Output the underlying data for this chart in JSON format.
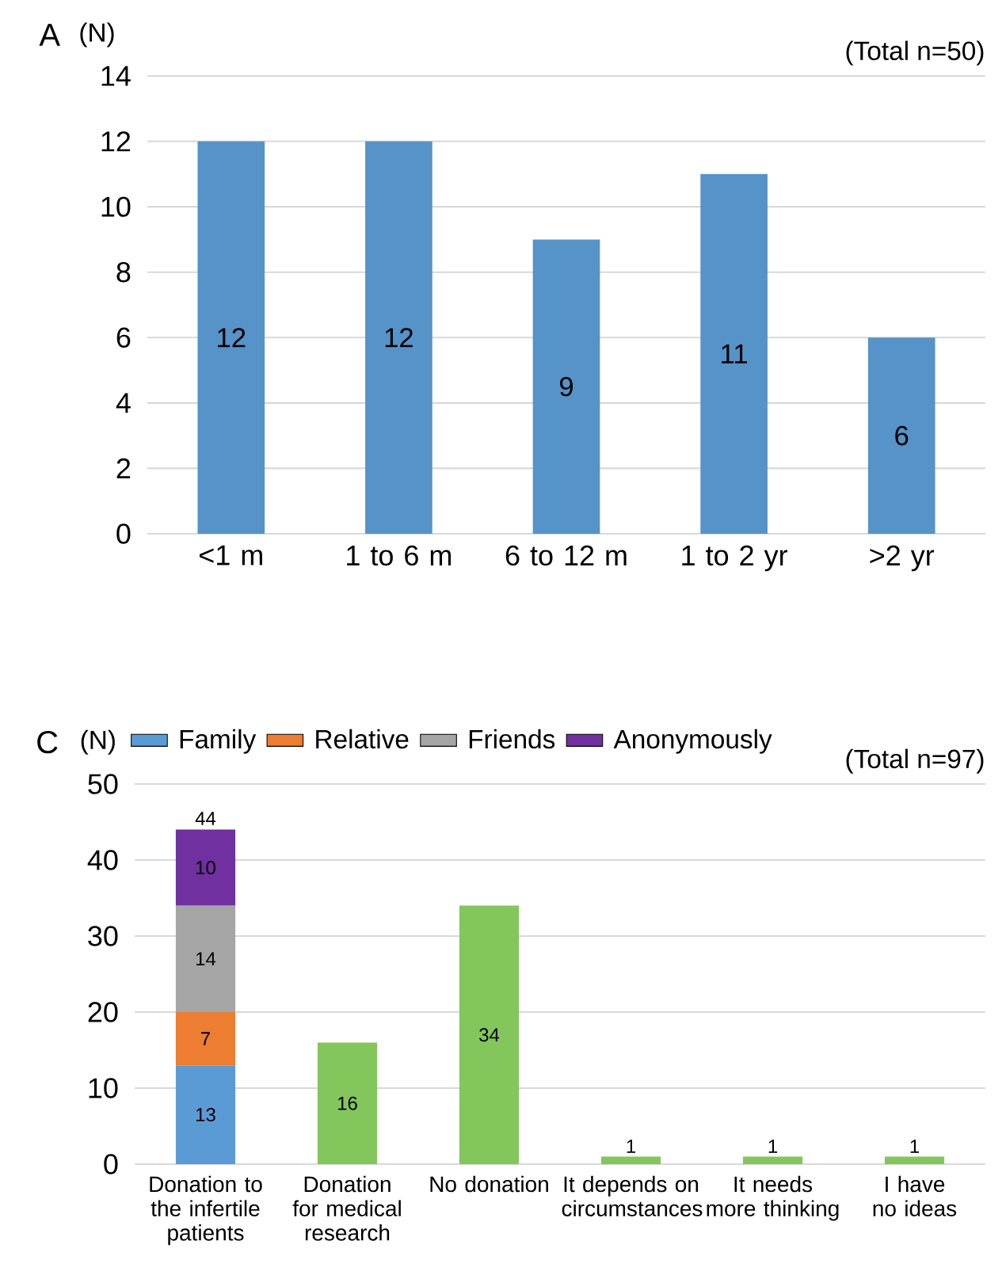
{
  "chart_data": [
    {
      "type": "bar",
      "title": "A",
      "ylabel": "(N)",
      "annotations": [
        "(Total n=50)"
      ],
      "categories": [
        "<1 m",
        "1 to 6 m",
        "6 to 12 m",
        "1 to 2 yr",
        ">2 yr"
      ],
      "values": [
        12,
        12,
        9,
        11,
        6
      ],
      "color": "#5593c8",
      "ylim": [
        0,
        14
      ],
      "yticks": [
        0,
        2,
        4,
        6,
        8,
        10,
        12,
        14
      ],
      "grid": "y",
      "data_labels": true
    },
    {
      "type": "bar",
      "title": "C",
      "ylabel": "(N)",
      "annotations": [
        "(Total n=97)"
      ],
      "categories": [
        "Donation to the infertile patients",
        "Donation for medical research",
        "No donation",
        "It depends on circumstances",
        "It needs more thinking",
        "I have no ideas"
      ],
      "stacked": true,
      "series": [
        {
          "name": "Family",
          "color": "#5b9bd5",
          "values": [
            13,
            null,
            null,
            null,
            null,
            null
          ]
        },
        {
          "name": "Relative",
          "color": "#ed7d31",
          "values": [
            7,
            null,
            null,
            null,
            null,
            null
          ]
        },
        {
          "name": "Friends",
          "color": "#a5a5a5",
          "values": [
            14,
            null,
            null,
            null,
            null,
            null
          ]
        },
        {
          "name": "Anonymously",
          "color": "#7030a0",
          "values": [
            10,
            null,
            null,
            null,
            null,
            null
          ]
        },
        {
          "color": "#83c65b",
          "values": [
            null,
            16,
            34,
            1,
            1,
            1
          ]
        }
      ],
      "totals": [
        "44",
        null,
        null,
        null,
        null,
        null
      ],
      "ylim": [
        0,
        50
      ],
      "yticks": [
        0,
        10,
        20,
        30,
        40,
        50
      ],
      "grid": "y",
      "legend": "top left",
      "data_labels": true
    }
  ]
}
